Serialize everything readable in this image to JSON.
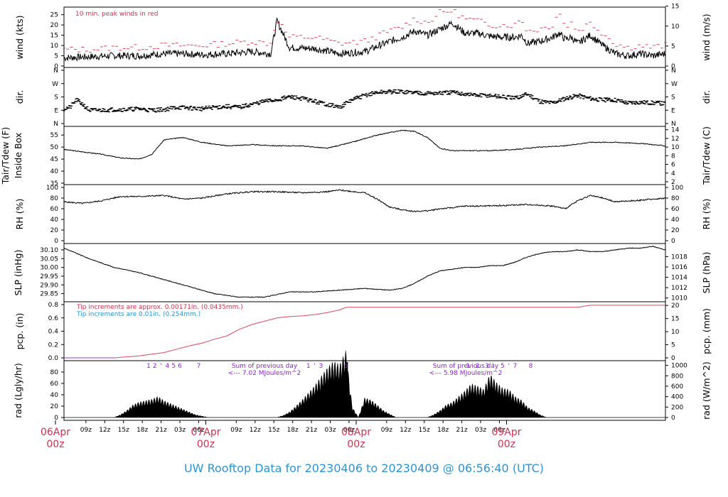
{
  "title": "UW Rooftop Data for 20230406  to  20230409 @ 06:56:40  (UTC)",
  "chart_data": [
    {
      "type": "line",
      "panel": "wind",
      "ylabel": "wind (kts)",
      "ylabel_right": "wind (m/s)",
      "ylim": [
        0,
        28
      ],
      "yticks": [
        "0",
        "5",
        "10",
        "15",
        "20",
        "25"
      ],
      "yticks_right": [
        "0",
        "5",
        "10",
        "15"
      ],
      "annotation": "10 min. peak winds in red",
      "series": [
        {
          "color": "#000000",
          "x": [
            0,
            4,
            8,
            12,
            16,
            19,
            22,
            26,
            30,
            33,
            34,
            36,
            40,
            44,
            48,
            52,
            54,
            56,
            58,
            60,
            62,
            64,
            66,
            68,
            70,
            72,
            73,
            74,
            76,
            78,
            79,
            80,
            81,
            82,
            84,
            86,
            88,
            90,
            92,
            94,
            96
          ],
          "values": [
            4,
            4.5,
            5,
            5,
            6,
            6,
            5.5,
            6,
            7,
            6,
            22,
            9,
            8.5,
            6,
            7,
            12,
            14,
            17,
            15,
            18,
            21,
            16,
            16,
            14.5,
            14,
            14,
            15,
            11,
            12,
            14,
            16,
            13,
            14,
            11,
            15,
            10,
            6,
            5,
            6,
            5,
            6
          ]
        },
        {
          "color": "#e0475f",
          "x": [
            0,
            4,
            8,
            12,
            16,
            19,
            22,
            26,
            30,
            33,
            34,
            36,
            40,
            44,
            48,
            52,
            54,
            56,
            58,
            60,
            62,
            64,
            66,
            68,
            70,
            72,
            73,
            74,
            76,
            78,
            79,
            80,
            81,
            82,
            84,
            86,
            88,
            90,
            92,
            94,
            96
          ],
          "values": [
            8,
            8,
            9,
            9,
            10,
            10,
            10,
            11,
            12,
            11,
            23,
            14,
            14,
            11,
            12,
            17,
            19,
            23,
            21,
            26,
            27,
            23,
            22,
            20,
            20,
            20,
            23,
            17,
            18,
            20,
            27,
            19,
            21,
            17,
            21,
            16,
            11,
            9,
            10,
            9,
            10
          ]
        }
      ]
    },
    {
      "type": "scatter",
      "panel": "dir",
      "ylabel": "dir.",
      "ylabel_right": "dir.",
      "yticks": [
        "N",
        "E",
        "S",
        "W",
        "N"
      ],
      "x": [
        0,
        1,
        2,
        3,
        4,
        6,
        8,
        10,
        12,
        14,
        16,
        18,
        20,
        22,
        24,
        26,
        28,
        30,
        32,
        34,
        36,
        38,
        40,
        42,
        44,
        46,
        48,
        50,
        52,
        54,
        56,
        58,
        60,
        62,
        64,
        66,
        68,
        70,
        72,
        74,
        76,
        78,
        80,
        82,
        84,
        86,
        88,
        90,
        92,
        94,
        96
      ],
      "values": [
        100,
        110,
        160,
        130,
        90,
        90,
        95,
        95,
        100,
        90,
        95,
        110,
        105,
        100,
        110,
        115,
        110,
        130,
        150,
        160,
        180,
        170,
        150,
        130,
        110,
        160,
        190,
        210,
        215,
        215,
        210,
        205,
        205,
        210,
        200,
        190,
        190,
        180,
        170,
        200,
        150,
        140,
        170,
        190,
        170,
        160,
        160,
        140,
        145,
        140,
        135
      ]
    },
    {
      "type": "line",
      "panel": "temp",
      "ylabel": "Tair/Tdew (F)",
      "ylabel2": "Inside Box",
      "ylabel_right": "Tair/Tdew (C)",
      "ylim": [
        35,
        58
      ],
      "yticks": [
        "35",
        "40",
        "45",
        "50",
        "55"
      ],
      "yticks_right": [
        "2",
        "4",
        "6",
        "8",
        "10",
        "12",
        "14"
      ],
      "x": [
        0,
        3,
        6,
        9,
        12,
        14,
        16,
        19,
        22,
        26,
        30,
        34,
        38,
        42,
        46,
        50,
        52,
        54,
        56,
        58,
        60,
        62,
        64,
        66,
        68,
        72,
        76,
        80,
        84,
        88,
        92,
        96
      ],
      "values": [
        49,
        48,
        47,
        45.5,
        45,
        47,
        53,
        54,
        52,
        50.5,
        51,
        50.5,
        50.5,
        49.5,
        52,
        55,
        56,
        57,
        56.5,
        54,
        49.5,
        48.5,
        48.5,
        48.5,
        48.5,
        49,
        50,
        50.5,
        52,
        52,
        51.5,
        50.5
      ]
    },
    {
      "type": "line",
      "panel": "rh",
      "ylabel": "RH (%)",
      "ylabel_right": "RH (%)",
      "ylim": [
        0,
        100
      ],
      "yticks": [
        "0",
        "20",
        "40",
        "60",
        "80",
        "100"
      ],
      "x": [
        0,
        3,
        6,
        9,
        12,
        16,
        19,
        22,
        26,
        30,
        34,
        38,
        42,
        44,
        48,
        50,
        52,
        54,
        56,
        58,
        60,
        62,
        64,
        66,
        70,
        74,
        78,
        80,
        82,
        84,
        86,
        88,
        92,
        96
      ],
      "values": [
        73,
        70,
        75,
        83,
        83,
        85,
        78,
        80,
        88,
        92,
        92,
        90,
        92,
        95,
        90,
        78,
        63,
        58,
        55,
        56,
        60,
        62,
        65,
        65,
        66,
        68,
        65,
        60,
        75,
        85,
        80,
        73,
        76,
        80
      ]
    },
    {
      "type": "line",
      "panel": "slp",
      "ylabel": "SLP (inHg)",
      "ylabel_right": "SLP (hPa)",
      "ylim": [
        29.82,
        30.12
      ],
      "yticks": [
        "29.85",
        "29.90",
        "29.95",
        "30.00",
        "30.05",
        "30.10"
      ],
      "yticks_right": [
        "1010",
        "1012",
        "1014",
        "1016",
        "1018"
      ],
      "x": [
        0,
        4,
        8,
        12,
        16,
        20,
        24,
        28,
        32,
        36,
        40,
        44,
        48,
        52,
        54,
        56,
        58,
        60,
        62,
        64,
        66,
        68,
        70,
        72,
        74,
        76,
        78,
        80,
        82,
        84,
        86,
        88,
        90,
        92,
        94,
        96
      ],
      "values": [
        30.11,
        30.05,
        30.0,
        29.97,
        29.93,
        29.89,
        29.85,
        29.83,
        29.83,
        29.86,
        29.86,
        29.87,
        29.88,
        29.87,
        29.88,
        29.91,
        29.95,
        29.98,
        29.99,
        30.0,
        30.0,
        30.01,
        30.01,
        30.03,
        30.06,
        30.08,
        30.09,
        30.09,
        30.1,
        30.09,
        30.09,
        30.1,
        30.11,
        30.11,
        30.12,
        30.1
      ]
    },
    {
      "type": "line",
      "panel": "pcp",
      "ylabel": "pcp. (in)",
      "ylabel_right": "pcp. (mm)",
      "ylim": [
        0,
        0.8
      ],
      "yticks": [
        "0.0",
        "0.2",
        "0.4",
        "0.6",
        "0.8"
      ],
      "yticks_right": [
        "0",
        "5",
        "10",
        "15",
        "20"
      ],
      "annotation_red": "Tip increments are approx. 0.00171in. (0.0435mm.)",
      "annotation_blue": "Tip increments are 0.01in. (0.254mm.)",
      "series": [
        {
          "color": "#e0475f",
          "x": [
            0,
            8,
            12,
            16,
            18,
            20,
            22,
            24,
            26,
            28,
            30,
            32,
            34,
            36,
            38,
            40,
            42,
            44,
            45,
            46,
            60,
            76,
            82,
            84,
            96
          ],
          "values": [
            0,
            0,
            0.03,
            0.08,
            0.13,
            0.18,
            0.22,
            0.28,
            0.33,
            0.43,
            0.5,
            0.55,
            0.6,
            0.62,
            0.63,
            0.65,
            0.68,
            0.72,
            0.76,
            0.76,
            0.76,
            0.76,
            0.76,
            0.79,
            0.79
          ]
        },
        {
          "color": "#2a95d6",
          "x": [
            0,
            8
          ],
          "values": [
            0,
            0
          ]
        }
      ]
    },
    {
      "type": "area",
      "panel": "rad",
      "ylabel": "rad (Lgly/hr)",
      "ylabel_right": "rad (W/m^2)",
      "ylim": [
        0,
        95
      ],
      "yticks": [
        "0",
        "20",
        "40",
        "60",
        "80"
      ],
      "yticks_right": [
        "0",
        "200",
        "400",
        "600",
        "800",
        "1000"
      ],
      "x": [
        0,
        8,
        9,
        10,
        11,
        12,
        13,
        14,
        15,
        16,
        17,
        18,
        19,
        20,
        21,
        22,
        23,
        24,
        25,
        34,
        35,
        36,
        37,
        38,
        39,
        40,
        41,
        42,
        43,
        44,
        45,
        46,
        47,
        48,
        49,
        50,
        51,
        52,
        53,
        58,
        59,
        60,
        61,
        62,
        63,
        64,
        65,
        66,
        67,
        68,
        69,
        70,
        71,
        72,
        73,
        74,
        75,
        76,
        77,
        96
      ],
      "values": [
        0,
        0,
        4,
        10,
        18,
        22,
        24,
        26,
        30,
        24,
        20,
        16,
        12,
        8,
        4,
        2,
        0,
        0,
        0,
        0,
        3,
        8,
        16,
        25,
        35,
        45,
        58,
        70,
        80,
        75,
        95,
        15,
        0,
        28,
        25,
        18,
        10,
        5,
        0,
        0,
        4,
        10,
        18,
        22,
        30,
        38,
        48,
        45,
        40,
        62,
        50,
        42,
        40,
        30,
        25,
        15,
        10,
        4,
        0,
        0
      ]
    }
  ],
  "hour_ticks": [
    "09z",
    "12z",
    "15z",
    "18z",
    "21z",
    "03z",
    "06z",
    "09z",
    "12z",
    "15z",
    "18z",
    "21z",
    "03z",
    "06z",
    "09z",
    "12z",
    "15z",
    "18z",
    "21z",
    "03z",
    "06z"
  ],
  "day_labels": [
    {
      "day": "06Apr",
      "time": "00z"
    },
    {
      "day": "07Apr",
      "time": "00z"
    },
    {
      "day": "08Apr",
      "time": "00z"
    },
    {
      "day": "09Apr",
      "time": "00z"
    }
  ],
  "rad_annotations": {
    "day1_hours": [
      "1",
      "2",
      "'",
      "4",
      "5",
      "6",
      "7"
    ],
    "day1_sum_title": "Sum of previous day",
    "day1_sum": "<--- 7.02 MJoules/m^2",
    "day2_hours": [
      "1",
      "'",
      "3",
      "5"
    ],
    "day2_sum_title": "Sum of previous day",
    "day2_sum": "<--- 5.98 MJoules/m^2",
    "day3_hours": [
      "1",
      "2",
      "3",
      "'",
      "5",
      "'",
      "7",
      "8"
    ]
  }
}
